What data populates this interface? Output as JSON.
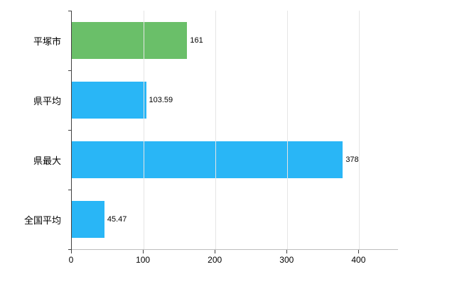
{
  "chart_data": {
    "type": "bar",
    "orientation": "horizontal",
    "title": "",
    "xlabel": "",
    "ylabel": "",
    "categories": [
      "平塚市",
      "県平均",
      "県最大",
      "全国平均"
    ],
    "values": [
      161,
      103.59,
      378,
      45.47
    ],
    "value_labels": [
      "161",
      "103.59",
      "378",
      "45.47"
    ],
    "bar_colors": [
      "#6abf69",
      "#29b6f6",
      "#29b6f6",
      "#29b6f6"
    ],
    "xlim": [
      0,
      455
    ],
    "xticks": [
      0,
      100,
      200,
      300,
      400
    ],
    "xtick_labels": [
      "0",
      "100",
      "200",
      "300",
      "400"
    ],
    "grid": true,
    "legend": false
  },
  "colors": {
    "bar_green": "#6abf69",
    "bar_blue": "#29b6f6",
    "gridline": "#e5e5e5",
    "axis": "#424242",
    "text": "#000000",
    "background": "#ffffff"
  }
}
